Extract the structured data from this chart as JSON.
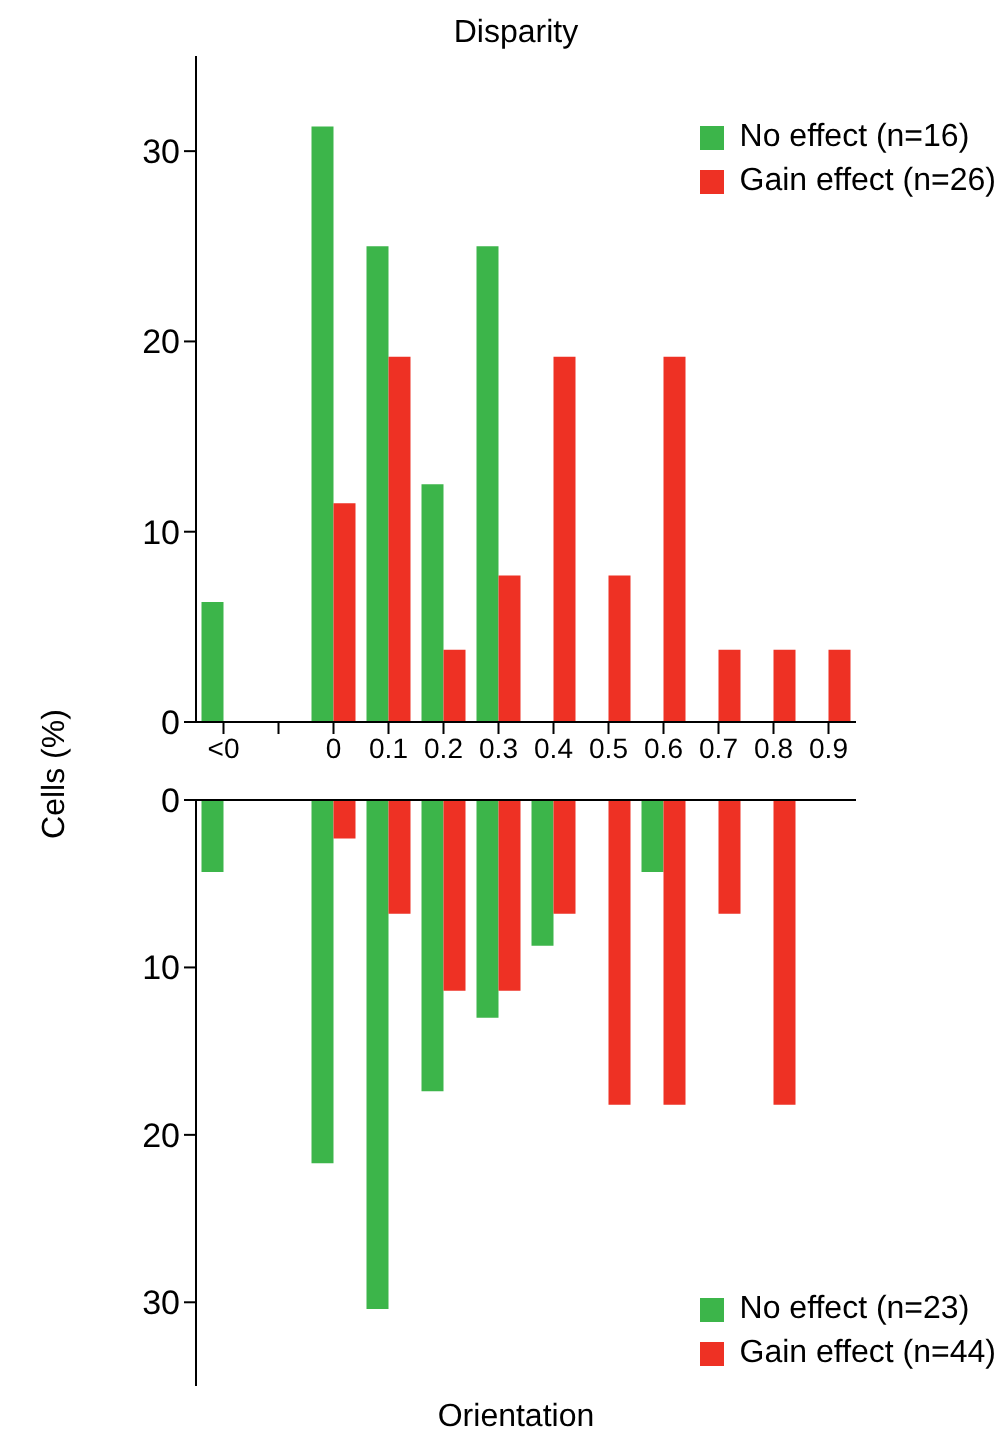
{
  "chart_data": [
    {
      "type": "bar",
      "title": "Disparity",
      "ylabel": "Cells (%)",
      "categories": [
        "<0",
        null,
        "0",
        "0.1",
        "0.2",
        "0.3",
        "0.4",
        "0.5",
        "0.6",
        "0.7",
        "0.8",
        "0.9"
      ],
      "series": [
        {
          "name": "No effect (n=16)",
          "color": "#3cb54a",
          "values": [
            6.3,
            0,
            31.3,
            25,
            12.5,
            25,
            0,
            0,
            0,
            0,
            0,
            0
          ]
        },
        {
          "name": "Gain effect (n=26)",
          "color": "#ee3124",
          "values": [
            0,
            0,
            11.5,
            19.2,
            3.8,
            7.7,
            19.2,
            7.7,
            19.2,
            3.8,
            3.8,
            3.8
          ]
        }
      ],
      "ylim": [
        0,
        35
      ],
      "yticks": [
        0,
        10,
        20,
        30
      ],
      "legend": "top right"
    },
    {
      "type": "bar",
      "title": "Orientation",
      "categories": [
        null,
        null,
        null,
        null,
        null,
        null,
        null,
        null,
        null,
        null,
        null,
        null
      ],
      "series": [
        {
          "name": "No effect (n=23)",
          "color": "#3cb54a",
          "values": [
            4.3,
            0,
            21.7,
            30.4,
            17.4,
            13,
            8.7,
            0,
            4.3,
            0,
            0,
            0
          ]
        },
        {
          "name": "Gain effect (n=44)",
          "color": "#ee3124",
          "values": [
            0,
            0,
            2.3,
            6.8,
            11.4,
            11.4,
            6.8,
            18.2,
            18.2,
            6.8,
            18.2,
            0
          ]
        }
      ],
      "ylim": [
        35,
        0
      ],
      "yticks": [
        0,
        10,
        20,
        30
      ],
      "legend": "bottom right",
      "tick_labels": "y"
    }
  ]
}
